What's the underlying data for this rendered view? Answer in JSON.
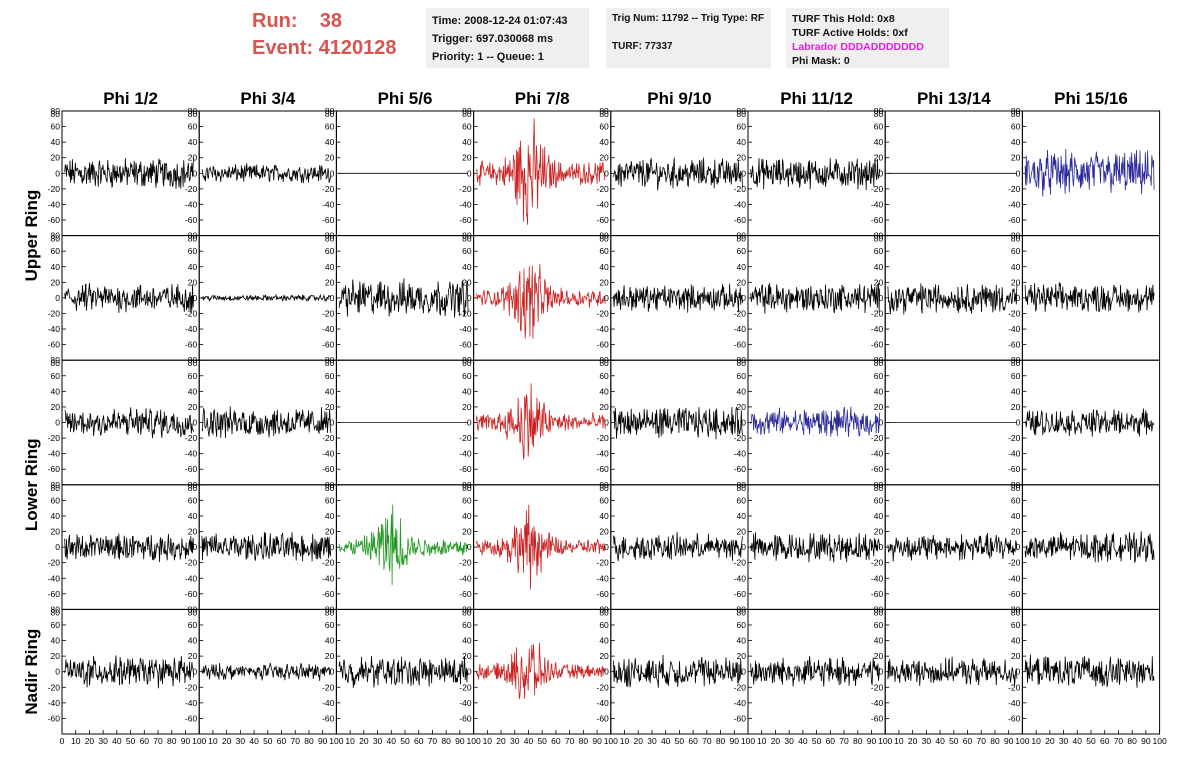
{
  "header": {
    "run_label": "Run:",
    "run_value": "38",
    "event_label": "Event:",
    "event_value": "4120128"
  },
  "time_box": {
    "time": "Time: 2008-12-24 01:07:43",
    "trigger": "Trigger: 697.030068 ms",
    "priority": "Priority: 1 -- Queue: 1"
  },
  "trig_box": {
    "trig": "Trig Num: 11792 -- Trig Type: RF",
    "turf": "TURF: 77337"
  },
  "turf_box": {
    "hold": "TURF This Hold: 0x8",
    "active": "TURF Active Holds: 0xf",
    "labrador": "Labrador DDDADDDDDDD",
    "phimask": "Phi Mask: 0"
  },
  "colors": {
    "default": "#000000",
    "red": "#cc2222",
    "blue": "#2a2a9a",
    "green": "#229922",
    "labrador": "#e020e0",
    "run": "#d9534f"
  },
  "chart_data": {
    "type": "line",
    "columns": [
      "Phi 1/2",
      "Phi 3/4",
      "Phi 5/6",
      "Phi 7/8",
      "Phi 9/10",
      "Phi 11/12",
      "Phi 13/14",
      "Phi 15/16"
    ],
    "ring_labels": [
      {
        "label": "Upper Ring",
        "rows": [
          0,
          1
        ]
      },
      {
        "label": "Lower Ring",
        "rows": [
          2,
          3
        ]
      },
      {
        "label": "Nadir Ring",
        "rows": [
          4
        ]
      }
    ],
    "xlim": [
      0,
      100
    ],
    "ylim": [
      -80,
      80
    ],
    "y_ticks": [
      -60,
      -40,
      -20,
      0,
      20,
      40,
      60,
      80
    ],
    "x_ticks_first": [
      "0",
      "10",
      "20",
      "30",
      "40",
      "50",
      "60",
      "70",
      "80",
      "90",
      "100"
    ],
    "x_ticks_inner": [
      "10",
      "20",
      "30",
      "40",
      "50",
      "60",
      "70",
      "80",
      "90",
      "100"
    ],
    "grid": false,
    "panels": [
      [
        {
          "color": "default",
          "amp": 15
        },
        {
          "color": "default",
          "amp": 9
        },
        {
          "color": "default",
          "amp": 0
        },
        {
          "color": "red",
          "amp": 28,
          "burst": true
        },
        {
          "color": "default",
          "amp": 15
        },
        {
          "color": "default",
          "amp": 15
        },
        {
          "color": "default",
          "amp": 0
        },
        {
          "color": "blue",
          "amp": 22
        }
      ],
      [
        {
          "color": "default",
          "amp": 14
        },
        {
          "color": "default",
          "amp": 3
        },
        {
          "color": "default",
          "amp": 18
        },
        {
          "color": "red",
          "amp": 22,
          "burst": true
        },
        {
          "color": "default",
          "amp": 13
        },
        {
          "color": "default",
          "amp": 15
        },
        {
          "color": "default",
          "amp": 15
        },
        {
          "color": "default",
          "amp": 14
        }
      ],
      [
        {
          "color": "default",
          "amp": 15
        },
        {
          "color": "default",
          "amp": 15
        },
        {
          "color": "default",
          "amp": 0
        },
        {
          "color": "red",
          "amp": 22,
          "burst": true
        },
        {
          "color": "default",
          "amp": 15
        },
        {
          "color": "blue",
          "amp": 14
        },
        {
          "color": "default",
          "amp": 0
        },
        {
          "color": "default",
          "amp": 13
        }
      ],
      [
        {
          "color": "default",
          "amp": 13
        },
        {
          "color": "default",
          "amp": 14
        },
        {
          "color": "green",
          "amp": 22,
          "burst": true
        },
        {
          "color": "red",
          "amp": 20,
          "burst": true
        },
        {
          "color": "default",
          "amp": 13
        },
        {
          "color": "default",
          "amp": 14
        },
        {
          "color": "default",
          "amp": 13
        },
        {
          "color": "default",
          "amp": 14
        }
      ],
      [
        {
          "color": "default",
          "amp": 15
        },
        {
          "color": "default",
          "amp": 8
        },
        {
          "color": "default",
          "amp": 15
        },
        {
          "color": "red",
          "amp": 18,
          "burst": true
        },
        {
          "color": "default",
          "amp": 15
        },
        {
          "color": "default",
          "amp": 14
        },
        {
          "color": "default",
          "amp": 13
        },
        {
          "color": "default",
          "amp": 15
        }
      ]
    ]
  }
}
